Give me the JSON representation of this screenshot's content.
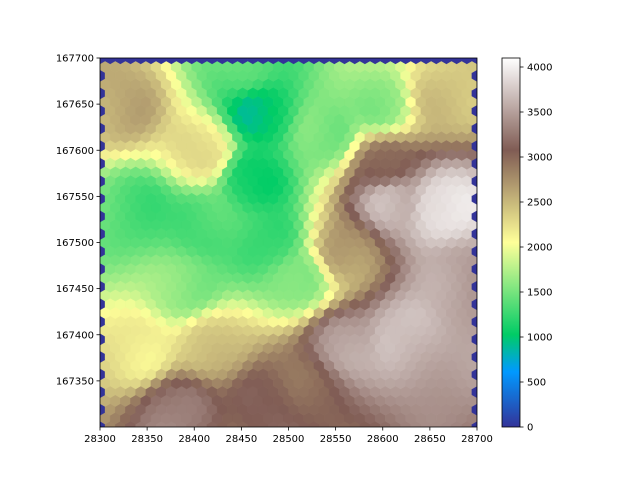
{
  "chart_data": {
    "type": "heatmap",
    "subtype": "hexbin",
    "title": "",
    "xlabel": "",
    "ylabel": "",
    "xlim": [
      28300,
      28700
    ],
    "ylim": [
      167300,
      167700
    ],
    "x_ticks": [
      "28300",
      "28350",
      "28400",
      "28450",
      "28500",
      "28550",
      "28600",
      "28650",
      "28700"
    ],
    "y_ticks": [
      "167350",
      "167400",
      "167450",
      "167500",
      "167550",
      "167600",
      "167650",
      "167700"
    ],
    "grid": false,
    "colormap": "terrain",
    "colorbar": {
      "position": "right",
      "range": [
        0,
        4100
      ],
      "ticks": [
        "0",
        "500",
        "1000",
        "1500",
        "2000",
        "2500",
        "3000",
        "3500",
        "4000"
      ]
    },
    "hex_grid": {
      "columns_x": [
        28300,
        28700
      ],
      "rows_y": [
        167300,
        167700
      ],
      "n_columns": 38,
      "n_rows": 43
    },
    "boundary_value": 0,
    "elevation_features": [
      {
        "kind": "valley",
        "x": 28470,
        "y": 167640,
        "value": 950
      },
      {
        "kind": "valley",
        "x": 28460,
        "y": 167570,
        "value": 1050
      },
      {
        "kind": "valley",
        "x": 28480,
        "y": 167500,
        "value": 1250
      },
      {
        "kind": "valley",
        "x": 28510,
        "y": 167460,
        "value": 1450
      },
      {
        "kind": "low",
        "x": 28340,
        "y": 167535,
        "value": 1350
      },
      {
        "kind": "low",
        "x": 28410,
        "y": 167520,
        "value": 1300
      },
      {
        "kind": "low",
        "x": 28390,
        "y": 167450,
        "value": 1550
      },
      {
        "kind": "low",
        "x": 28540,
        "y": 167615,
        "value": 1500
      },
      {
        "kind": "low",
        "x": 28600,
        "y": 167650,
        "value": 1600
      },
      {
        "kind": "low",
        "x": 28450,
        "y": 167690,
        "value": 1400
      },
      {
        "kind": "peak",
        "x": 28660,
        "y": 167540,
        "value": 4000
      },
      {
        "kind": "peak",
        "x": 28610,
        "y": 167545,
        "value": 3650
      },
      {
        "kind": "peak",
        "x": 28620,
        "y": 167400,
        "value": 3700
      },
      {
        "kind": "peak",
        "x": 28560,
        "y": 167390,
        "value": 3500
      },
      {
        "kind": "peak",
        "x": 28380,
        "y": 167320,
        "value": 3300
      },
      {
        "kind": "peak",
        "x": 28480,
        "y": 167330,
        "value": 3100
      },
      {
        "kind": "peak",
        "x": 28680,
        "y": 167460,
        "value": 3500
      },
      {
        "kind": "ridge",
        "x": 28320,
        "y": 167650,
        "value": 2600
      },
      {
        "kind": "ridge",
        "x": 28410,
        "y": 167600,
        "value": 2300
      },
      {
        "kind": "ridge",
        "x": 28560,
        "y": 167490,
        "value": 2700
      },
      {
        "kind": "ridge",
        "x": 28600,
        "y": 167585,
        "value": 3000
      },
      {
        "kind": "ridge",
        "x": 28660,
        "y": 167660,
        "value": 2400
      },
      {
        "kind": "plain",
        "x": 28340,
        "y": 167380,
        "value": 2200
      },
      {
        "kind": "plain",
        "x": 28420,
        "y": 167390,
        "value": 2400
      },
      {
        "kind": "plain",
        "x": 28520,
        "y": 167340,
        "value": 3000
      }
    ]
  }
}
